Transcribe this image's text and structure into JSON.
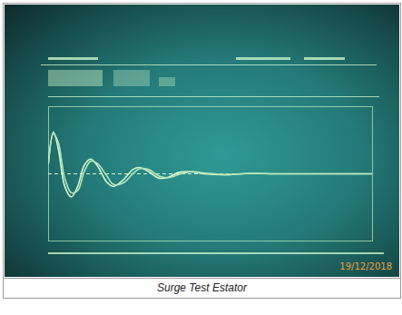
{
  "chart_data": {
    "type": "line",
    "caption": "Surge Test Estator",
    "annotations": [
      "19/12/2018"
    ],
    "x": [
      0,
      1.5,
      3,
      5,
      7,
      9,
      11,
      13,
      15,
      18,
      20,
      23,
      26,
      28,
      31,
      34,
      37,
      40,
      44,
      48,
      55,
      62,
      70,
      80,
      90,
      100
    ],
    "series": [
      {
        "color": "#d6f7d2",
        "values": [
          0.3,
          1.0,
          0.6,
          -0.3,
          -0.55,
          -0.3,
          0.2,
          0.35,
          0.2,
          -0.2,
          -0.3,
          -0.15,
          0.1,
          0.15,
          0.05,
          -0.1,
          -0.08,
          0.03,
          0.05,
          0,
          -0.02,
          0.01,
          0,
          0,
          0,
          0
        ]
      },
      {
        "color": "#b4e6bc",
        "values": [
          0.25,
          0.95,
          0.75,
          -0.1,
          -0.45,
          -0.4,
          0.05,
          0.3,
          0.25,
          -0.05,
          -0.25,
          -0.22,
          0,
          0.12,
          0.1,
          -0.05,
          -0.09,
          -0.02,
          0.05,
          0.02,
          -0.02,
          0.01,
          0,
          0,
          0,
          0
        ]
      }
    ],
    "xlim": [
      0,
      100
    ],
    "ylim": [
      -1.6,
      1.6
    ],
    "yticks": [
      0
    ],
    "grid": true,
    "tick_labels": false
  }
}
